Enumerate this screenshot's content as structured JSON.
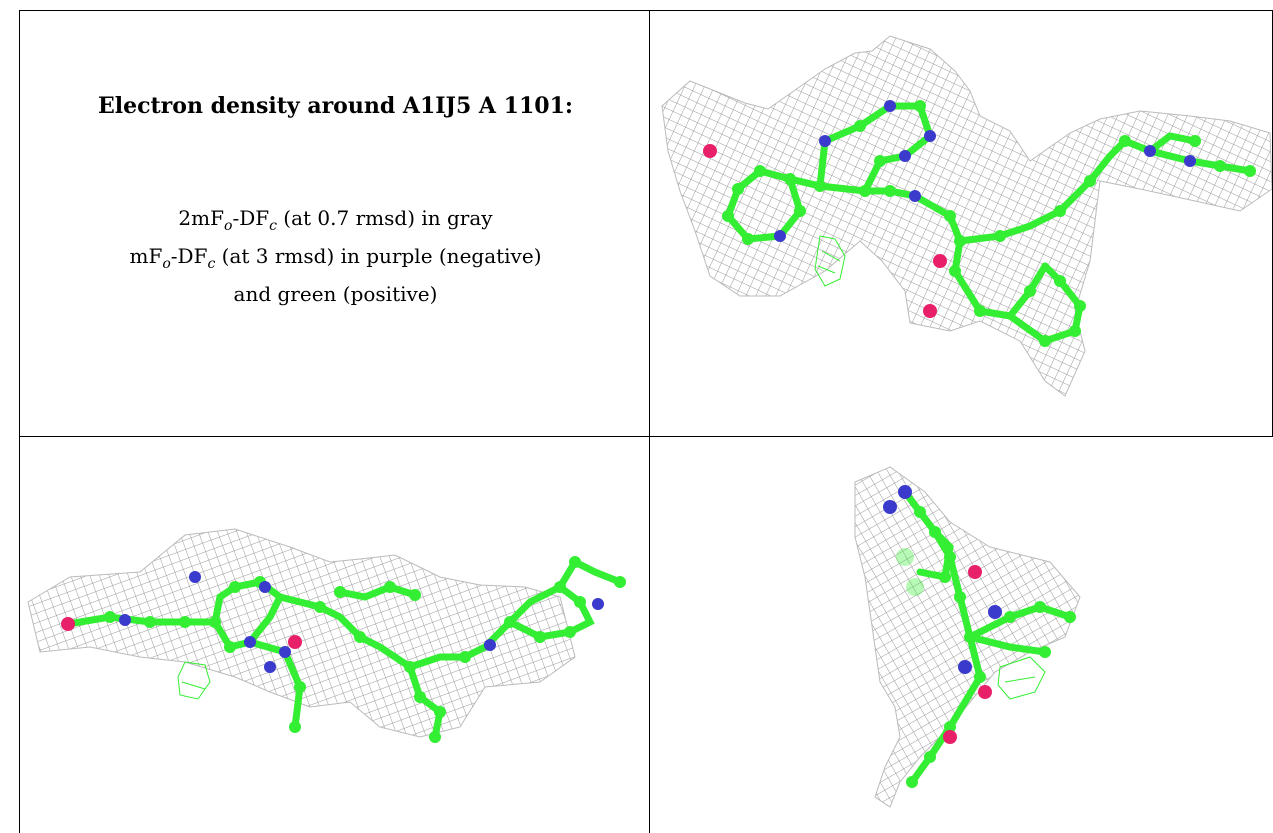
{
  "caption": {
    "title": "Electron density around A1IJ5 A 1101:",
    "line1_prefix": "2mF",
    "line1_sub1": "o",
    "line1_mid": "-DF",
    "line1_sub2": "c",
    "line1_suffix": " (at 0.7 rmsd) in gray",
    "line2_prefix": "mF",
    "line2_sub1": "o",
    "line2_mid": "-DF",
    "line2_sub2": "c",
    "line2_suffix": " (at 3 rmsd) in purple (negative)",
    "line3": "and green (positive)"
  },
  "colors": {
    "mesh": "#9a9a9a",
    "carbon": "#33ee33",
    "nitrogen": "#3a3acc",
    "oxygen": "#e8206a",
    "positive_density": "#33ee33",
    "border": "#000000"
  },
  "panels": [
    {
      "view": "view-1"
    },
    {
      "view": "view-2"
    },
    {
      "view": "view-3"
    }
  ]
}
